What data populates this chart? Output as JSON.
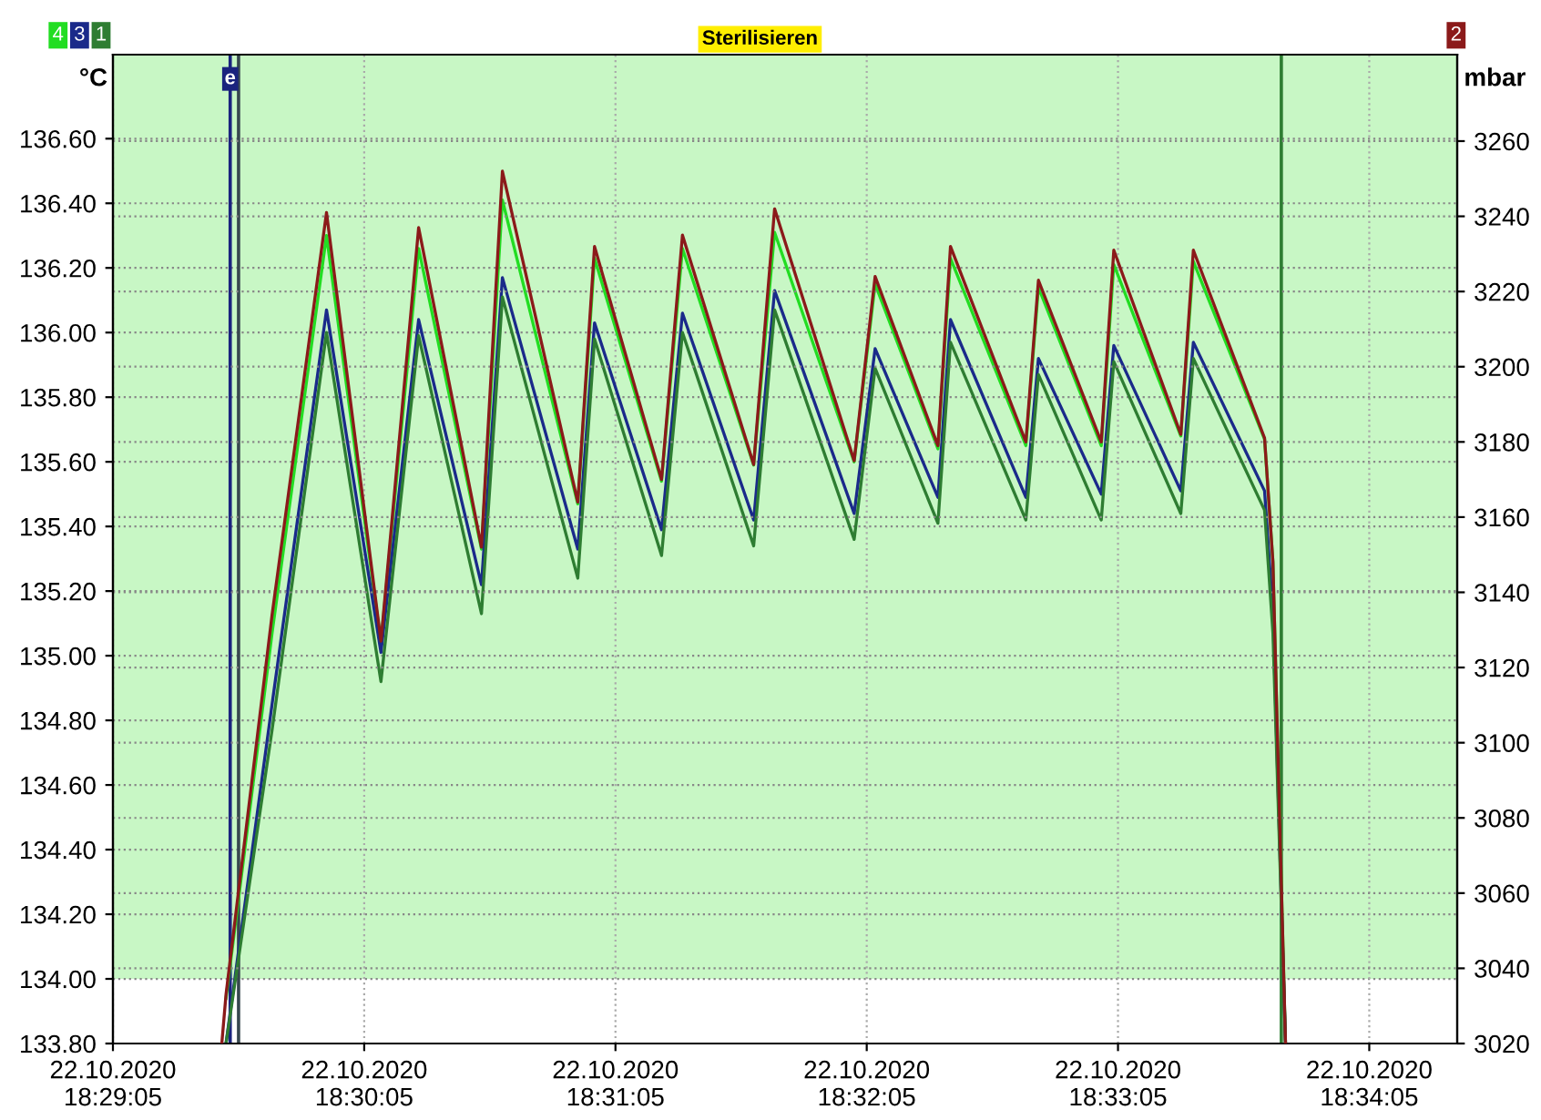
{
  "chart_data": {
    "type": "line",
    "ylabel": "°C",
    "y2label": "mbar",
    "x": [
      "2020-10-22T18:29:31",
      "2020-10-22T18:29:32",
      "2020-10-22T18:29:43",
      "2020-10-22T18:29:56",
      "2020-10-22T18:30:09",
      "2020-10-22T18:30:18",
      "2020-10-22T18:30:33",
      "2020-10-22T18:30:38",
      "2020-10-22T18:30:56",
      "2020-10-22T18:31:00",
      "2020-10-22T18:31:16",
      "2020-10-22T18:31:21",
      "2020-10-22T18:31:38",
      "2020-10-22T18:31:43",
      "2020-10-22T18:32:02",
      "2020-10-22T18:32:07",
      "2020-10-22T18:32:22",
      "2020-10-22T18:32:25",
      "2020-10-22T18:32:43",
      "2020-10-22T18:32:46",
      "2020-10-22T18:33:01",
      "2020-10-22T18:33:04",
      "2020-10-22T18:33:20",
      "2020-10-22T18:33:23",
      "2020-10-22T18:33:40",
      "2020-10-22T18:33:42",
      "2020-10-22T18:33:45"
    ],
    "series": [
      {
        "name": "4",
        "color": "#22dd22",
        "values": [
          null,
          133.94,
          135.07,
          136.3,
          135.04,
          136.26,
          135.33,
          136.41,
          135.47,
          136.23,
          135.54,
          136.26,
          135.59,
          136.31,
          135.6,
          136.15,
          135.64,
          136.23,
          135.65,
          136.14,
          135.65,
          136.21,
          135.68,
          136.22,
          135.67,
          135.29,
          133.8
        ]
      },
      {
        "name": "3",
        "color": "#1a2a8a",
        "values": [
          null,
          133.8,
          134.85,
          136.07,
          135.01,
          136.04,
          135.22,
          136.17,
          135.33,
          136.03,
          135.39,
          136.06,
          135.42,
          136.13,
          135.44,
          135.95,
          135.49,
          136.04,
          135.49,
          135.92,
          135.5,
          135.96,
          135.51,
          135.97,
          135.51,
          135.13,
          133.8
        ]
      },
      {
        "name": "1",
        "color": "#2e7d32",
        "values": [
          null,
          133.8,
          134.77,
          136.0,
          134.92,
          135.99,
          135.13,
          136.11,
          135.24,
          135.98,
          135.31,
          136.0,
          135.34,
          136.07,
          135.36,
          135.89,
          135.41,
          135.97,
          135.42,
          135.87,
          135.42,
          135.91,
          135.44,
          135.92,
          135.45,
          135.07,
          133.8
        ]
      },
      {
        "name": "2",
        "color": "#8b1a1a",
        "axis": "y2",
        "values": [
          3020,
          3033,
          3134,
          3241,
          3127,
          3237,
          3152,
          3252,
          3164,
          3232,
          3170,
          3235,
          3174,
          3242,
          3175,
          3224,
          3179,
          3232,
          3180,
          3223,
          3180,
          3231,
          3182,
          3231,
          3181,
          3148,
          3020
        ]
      }
    ],
    "xlim": [
      "2020-10-22T18:29:05",
      "2020-10-22T18:34:26"
    ],
    "xticks": [
      {
        "value": "2020-10-22T18:29:05",
        "label": "22.10.2020\n18:29:05"
      },
      {
        "value": "2020-10-22T18:30:05",
        "label": "22.10.2020\n18:30:05"
      },
      {
        "value": "2020-10-22T18:31:05",
        "label": "22.10.2020\n18:31:05"
      },
      {
        "value": "2020-10-22T18:32:05",
        "label": "22.10.2020\n18:32:05"
      },
      {
        "value": "2020-10-22T18:33:05",
        "label": "22.10.2020\n18:33:05"
      },
      {
        "value": "2020-10-22T18:34:05",
        "label": "22.10.2020\n18:34:05"
      }
    ],
    "ylim": [
      133.8,
      136.86
    ],
    "yticks": [
      {
        "value": 133.8,
        "label": "133.80"
      },
      {
        "value": 134.0,
        "label": "134.00"
      },
      {
        "value": 134.2,
        "label": "134.20"
      },
      {
        "value": 134.4,
        "label": "134.40"
      },
      {
        "value": 134.6,
        "label": "134.60"
      },
      {
        "value": 134.8,
        "label": "134.80"
      },
      {
        "value": 135.0,
        "label": "135.00"
      },
      {
        "value": 135.2,
        "label": "135.20"
      },
      {
        "value": 135.4,
        "label": "135.40"
      },
      {
        "value": 135.6,
        "label": "135.60"
      },
      {
        "value": 135.8,
        "label": "135.80"
      },
      {
        "value": 136.0,
        "label": "136.00"
      },
      {
        "value": 136.2,
        "label": "136.20"
      },
      {
        "value": 136.4,
        "label": "136.40"
      },
      {
        "value": 136.6,
        "label": "136.60"
      }
    ],
    "y2lim": [
      3020,
      3283
    ],
    "y2ticks": [
      3020,
      3040,
      3060,
      3080,
      3100,
      3120,
      3140,
      3160,
      3180,
      3200,
      3220,
      3240,
      3260
    ],
    "bands": [
      {
        "axis": "y",
        "from": 134.0,
        "to": 136.86,
        "color": "#c8f7c5"
      }
    ],
    "annotations": [
      "Sterilisieren"
    ],
    "ref_lines": [
      {
        "axis": "x",
        "value": "2020-10-22T18:29:33",
        "label": "e",
        "color": "#1a237e"
      },
      {
        "axis": "x",
        "value": "2020-10-22T18:29:35",
        "color": "#37474f"
      },
      {
        "axis": "x",
        "value": "2020-10-22T18:33:44",
        "color": "#2e7d32"
      }
    ],
    "grid": true,
    "legend": "top",
    "line_style": "solid",
    "marker": "none"
  }
}
